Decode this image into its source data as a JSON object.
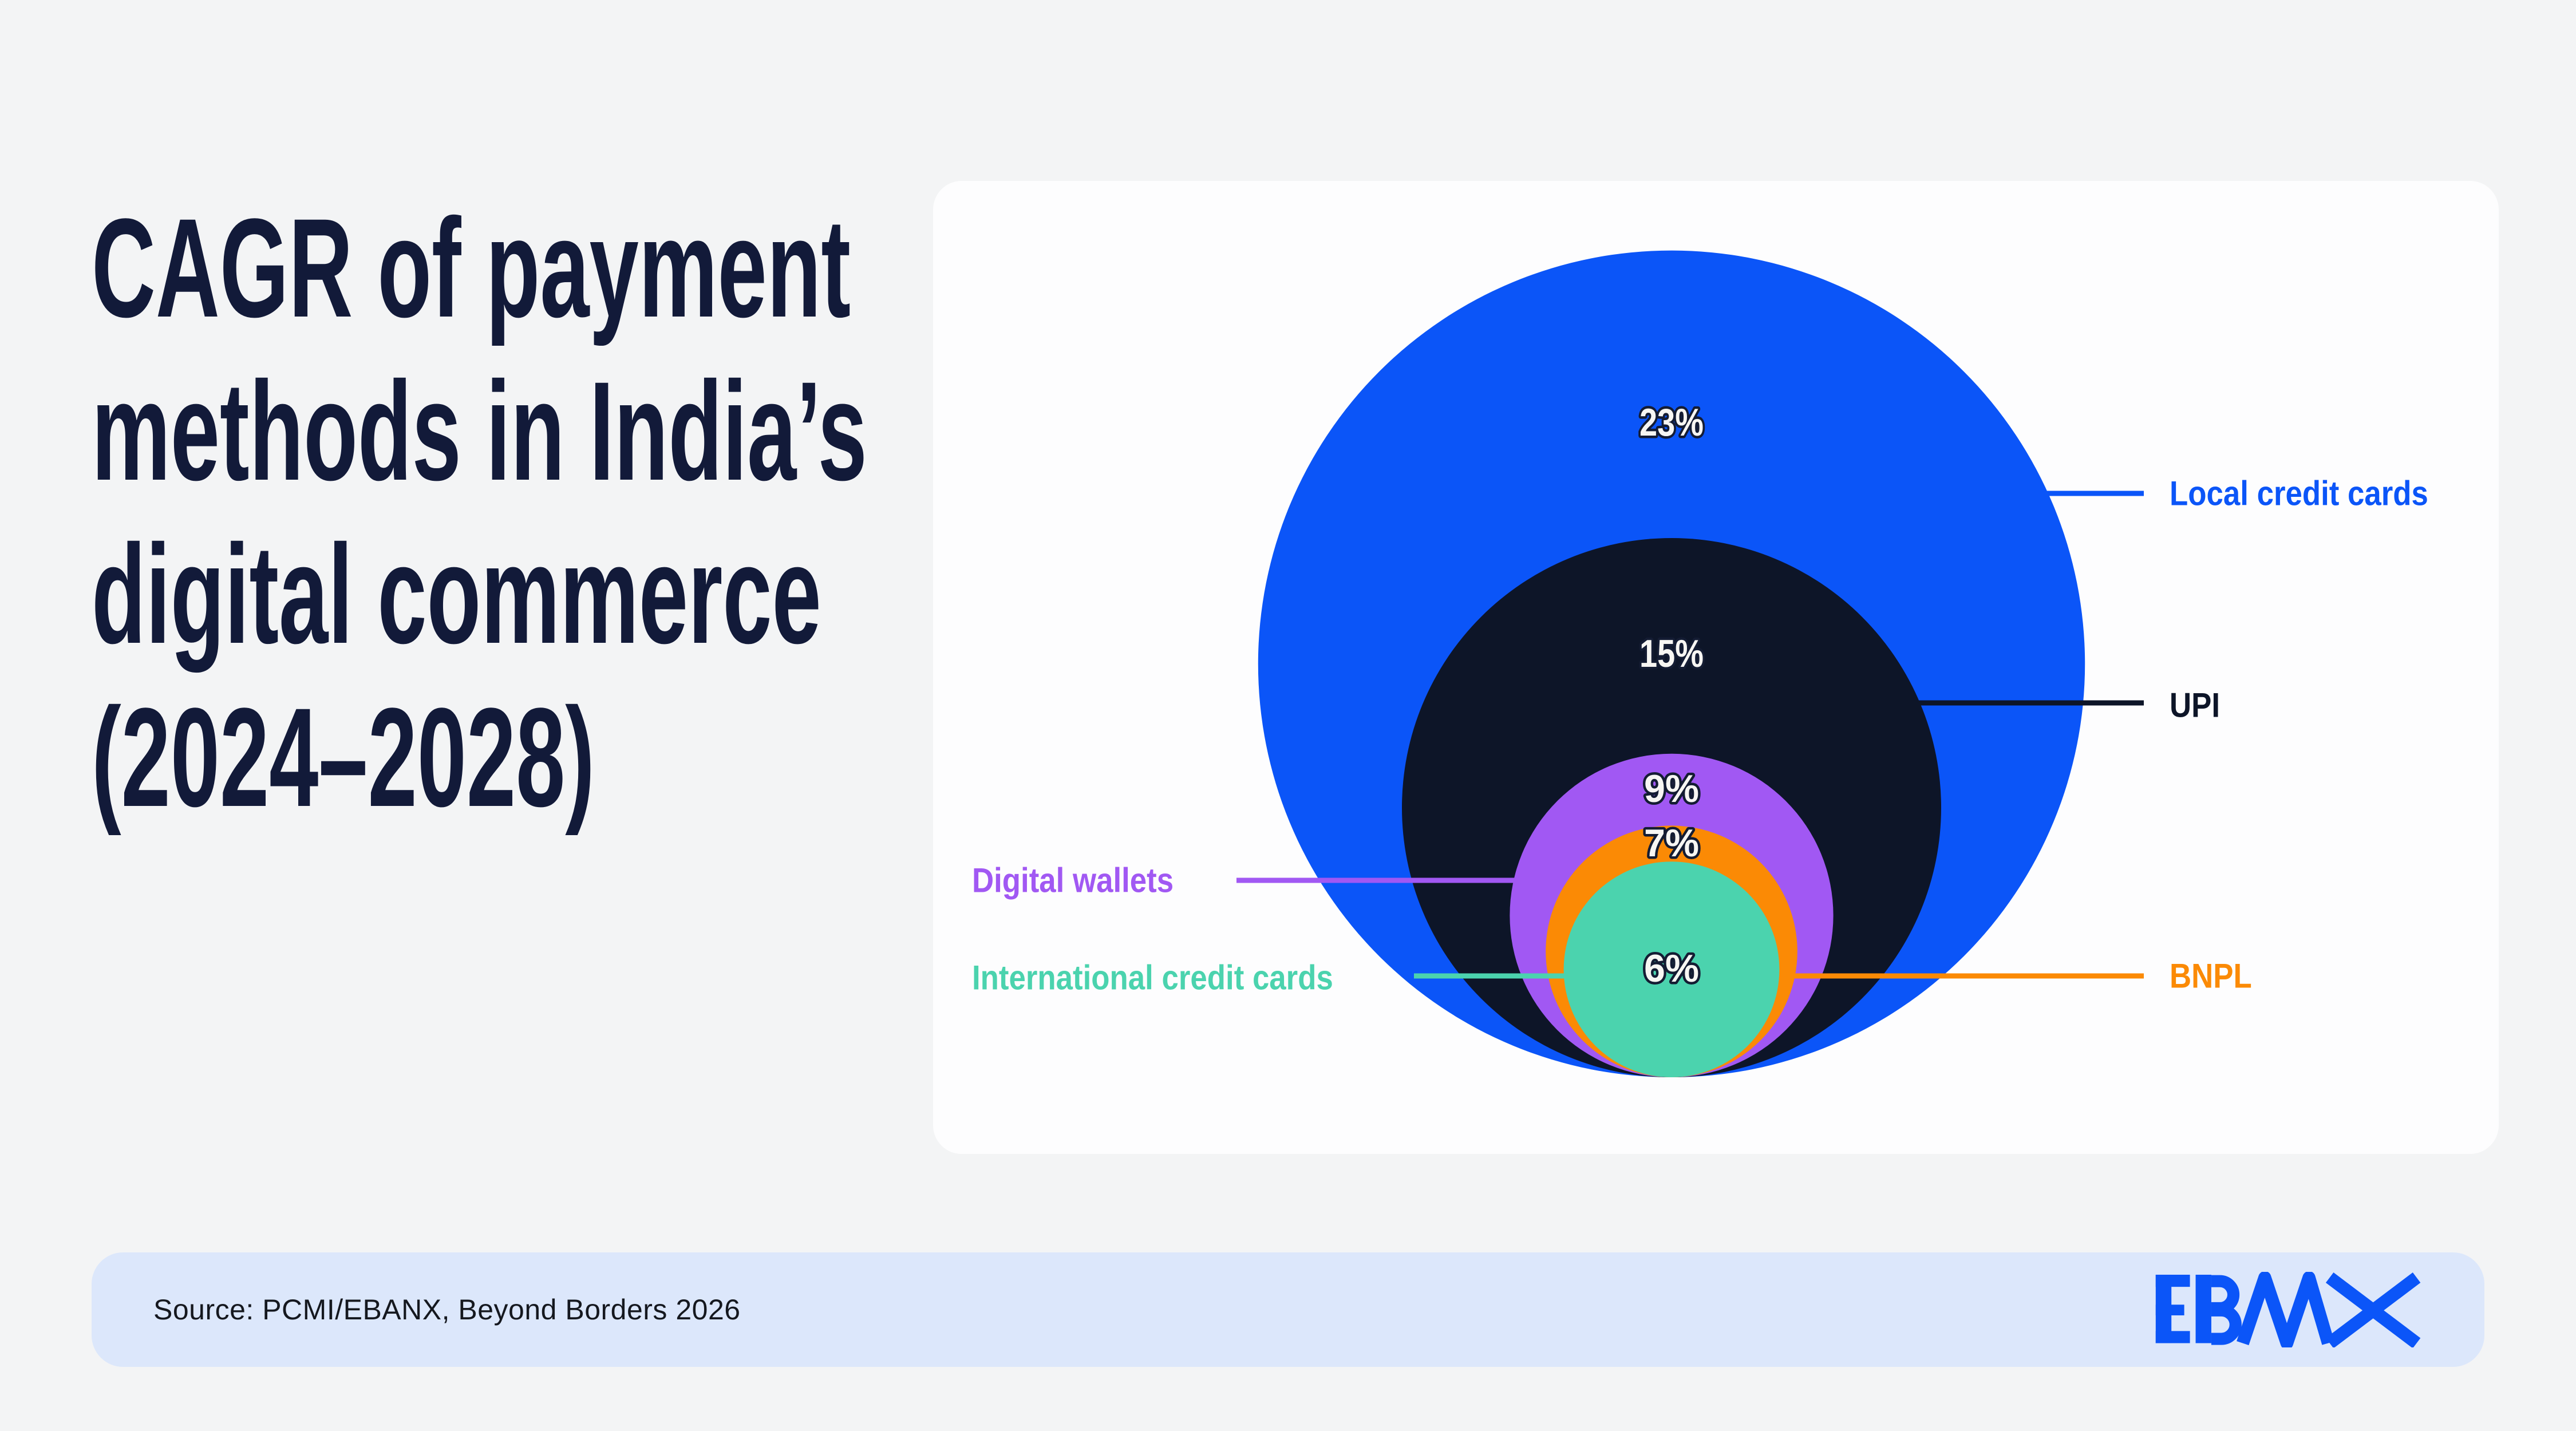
{
  "title": {
    "lines": [
      "CAGR of payment",
      "methods in India’s",
      "digital commerce",
      "(2024–2028)"
    ]
  },
  "chart_data": {
    "type": "bubble",
    "subtype": "nested-circles-tangent-bottom",
    "title": "CAGR of payment methods in India's digital commerce (2024–2028)",
    "value_unit": "% CAGR",
    "legend_position": "callout-lines",
    "items": [
      {
        "label": "Local credit cards",
        "value": 23,
        "pct": "23%",
        "color": "#0b55f8",
        "label_side": "right"
      },
      {
        "label": "UPI",
        "value": 15,
        "pct": "15%",
        "color": "#0d1528",
        "label_side": "right"
      },
      {
        "label": "Digital wallets",
        "value": 9,
        "pct": "9%",
        "color": "#a158f3",
        "label_side": "left"
      },
      {
        "label": "BNPL",
        "value": 7,
        "pct": "7%",
        "color": "#fb8a05",
        "label_side": "right"
      },
      {
        "label": "International credit cards",
        "value": 6,
        "pct": "6%",
        "color": "#4bd3ae",
        "label_side": "left"
      }
    ]
  },
  "footer": {
    "source": "Source: PCMI/EBANX, Beyond Borders 2026",
    "brand": "EBANX"
  },
  "colors": {
    "background": "#f3f4f5",
    "card": "#fdfdfe",
    "footer_bar": "#dce7fb",
    "title_text": "#121a39",
    "source_text": "#15181f",
    "pct_fill": "#f7f6f3",
    "pct_outline": "#141c33",
    "brand_blue": "#0b55f8"
  }
}
